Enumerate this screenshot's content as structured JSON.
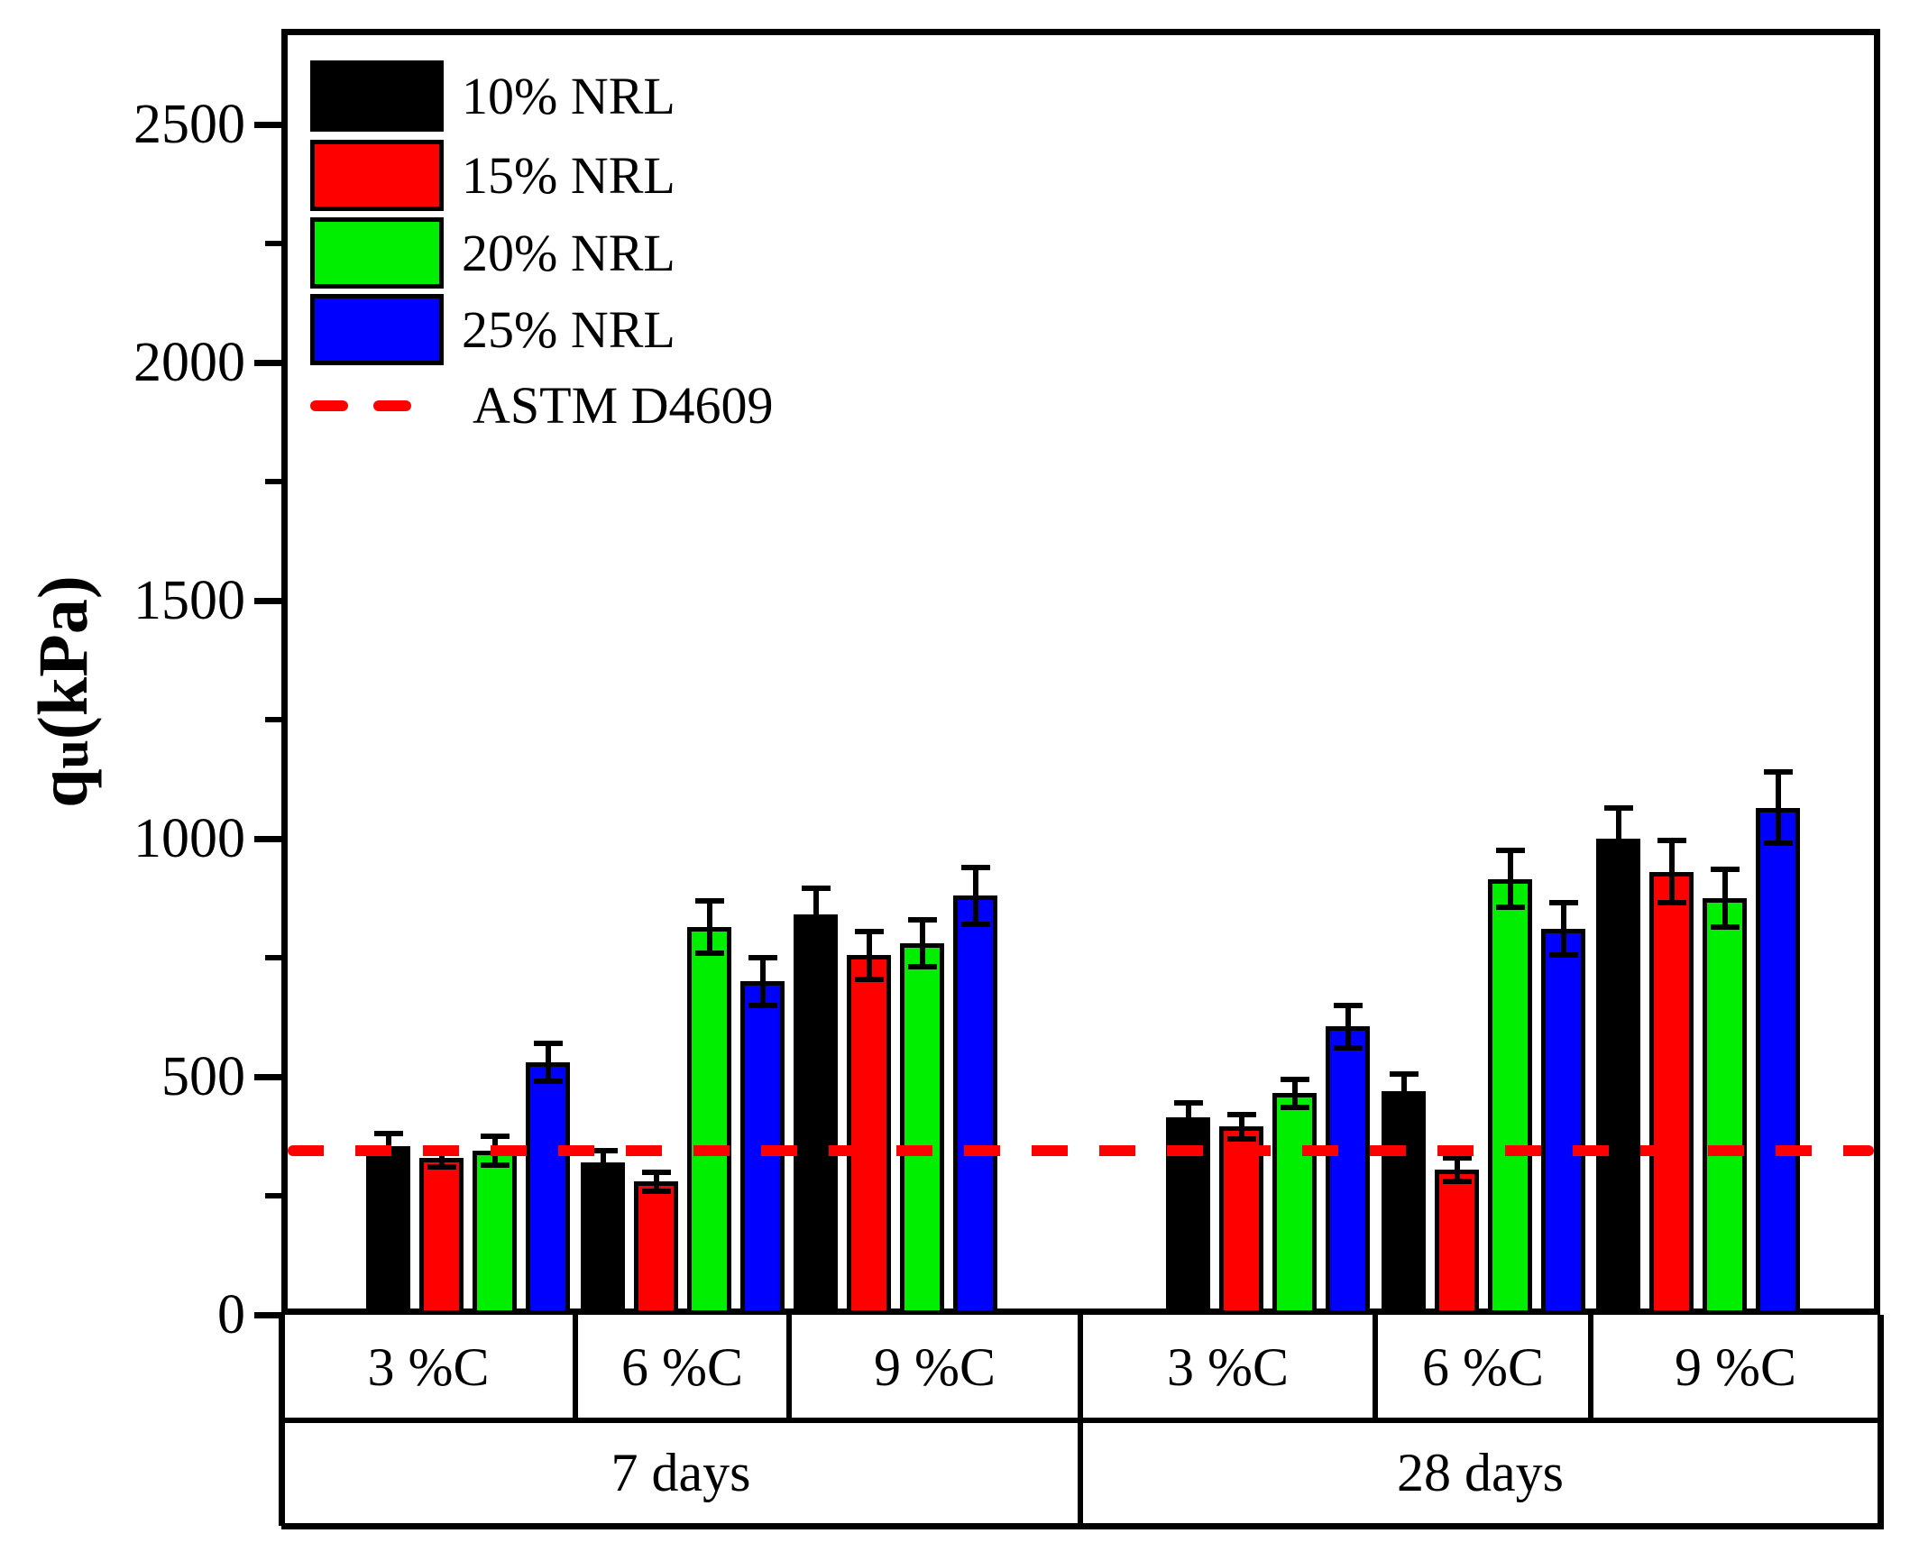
{
  "chart_data": {
    "type": "bar",
    "title": "",
    "ylabel": "q_u (kPa)",
    "ylabel_parts": {
      "base": "q",
      "sub": "u",
      "rest": " (kPa)"
    },
    "ylim": [
      0,
      2700
    ],
    "yticks": [
      0,
      500,
      1000,
      1500,
      2000,
      2500
    ],
    "minor_tick_step": 250,
    "grid": false,
    "background": "#ffffff",
    "legend_position": "top-left-inside",
    "categories": [
      "7 days / 3 %C",
      "7 days / 6 %C",
      "7 days / 9 %C",
      "28 days / 3 %C",
      "28 days / 6 %C",
      "28 days / 9 %C"
    ],
    "series": [
      {
        "name": "10% NRL",
        "color": "#000000",
        "values": [
          355,
          320,
          840,
          415,
          470,
          1000
        ],
        "errors": [
          25,
          25,
          55,
          30,
          35,
          65
        ]
      },
      {
        "name": "15% NRL",
        "color": "#ff0000",
        "values": [
          330,
          280,
          755,
          395,
          305,
          930
        ],
        "errors": [
          20,
          20,
          50,
          25,
          25,
          65
        ]
      },
      {
        "name": "20% NRL",
        "color": "#00ee00",
        "values": [
          345,
          815,
          780,
          465,
          915,
          875
        ],
        "errors": [
          30,
          55,
          50,
          30,
          60,
          60
        ]
      },
      {
        "name": "25% NRL",
        "color": "#0000ff",
        "values": [
          530,
          700,
          880,
          605,
          810,
          1065
        ],
        "errors": [
          40,
          50,
          60,
          45,
          55,
          75
        ]
      }
    ],
    "reference_line": {
      "label": "ASTM D4609",
      "value": 345,
      "color": "#ff0000",
      "style": "dashed"
    },
    "x_axis_table": {
      "row1": [
        "3 %C",
        "6 %C",
        "9 %C",
        "3 %C",
        "6 %C",
        "9 %C"
      ],
      "row2": [
        "7 days",
        "28 days"
      ]
    }
  }
}
